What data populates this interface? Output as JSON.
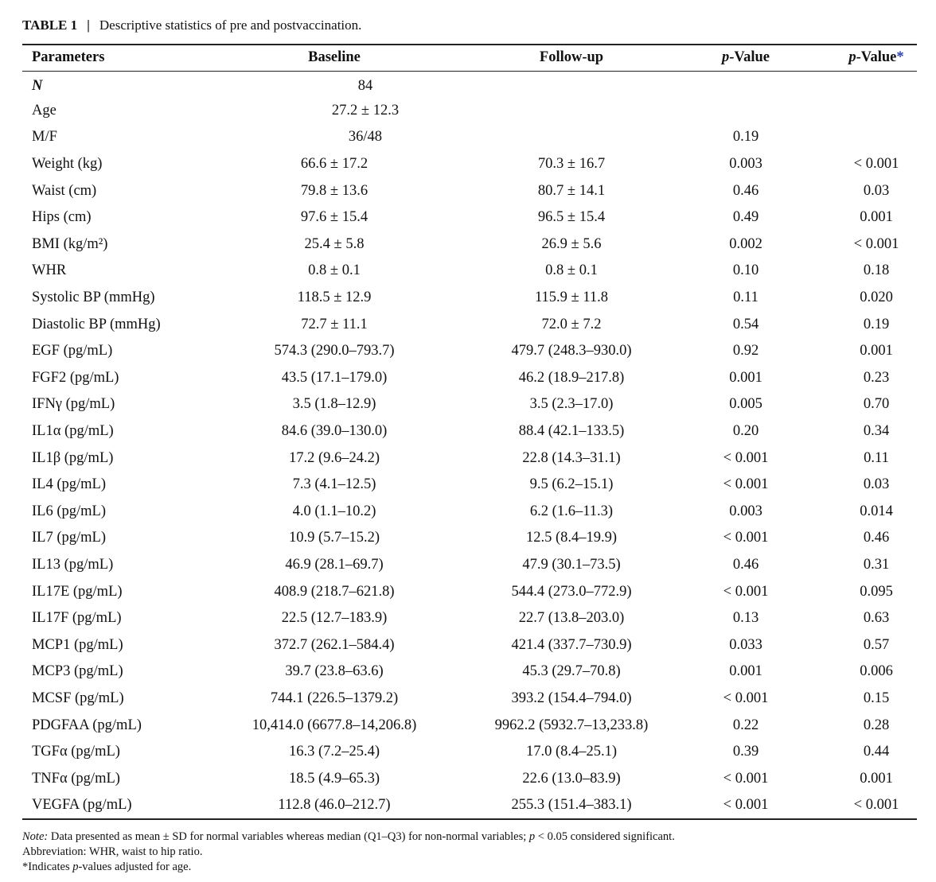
{
  "caption": {
    "label": "TABLE 1",
    "separator": "|",
    "text": "Descriptive statistics of pre and postvaccination."
  },
  "headers": {
    "parameters": "Parameters",
    "baseline": "Baseline",
    "followup": "Follow-up",
    "p_italic": "p",
    "p_rest": "-Value",
    "padj_italic": "p",
    "padj_rest": "-Value",
    "padj_star": "*"
  },
  "combined_rows": [
    {
      "param": "N",
      "value": "84",
      "p": "",
      "padj": ""
    },
    {
      "param": "Age",
      "value": "27.2 ± 12.3",
      "p": "",
      "padj": ""
    },
    {
      "param": "M/F",
      "value": "36/48",
      "p": "0.19",
      "padj": ""
    }
  ],
  "rows": [
    {
      "param": "Weight (kg)",
      "baseline": "66.6 ± 17.2",
      "followup": "70.3 ± 16.7",
      "p": "0.003",
      "padj": "< 0.001"
    },
    {
      "param": "Waist (cm)",
      "baseline": "79.8 ± 13.6",
      "followup": "80.7 ± 14.1",
      "p": "0.46",
      "padj": "0.03"
    },
    {
      "param": "Hips (cm)",
      "baseline": "97.6 ± 15.4",
      "followup": "96.5 ± 15.4",
      "p": "0.49",
      "padj": "0.001"
    },
    {
      "param": "BMI (kg/m²)",
      "baseline": "25.4 ± 5.8",
      "followup": "26.9 ± 5.6",
      "p": "0.002",
      "padj": "< 0.001"
    },
    {
      "param": "WHR",
      "baseline": "0.8 ± 0.1",
      "followup": "0.8 ± 0.1",
      "p": "0.10",
      "padj": "0.18"
    },
    {
      "param": "Systolic BP (mmHg)",
      "baseline": "118.5 ± 12.9",
      "followup": "115.9 ± 11.8",
      "p": "0.11",
      "padj": "0.020"
    },
    {
      "param": "Diastolic BP (mmHg)",
      "baseline": "72.7 ± 11.1",
      "followup": "72.0 ± 7.2",
      "p": "0.54",
      "padj": "0.19"
    },
    {
      "param": "EGF (pg/mL)",
      "baseline": "574.3 (290.0–793.7)",
      "followup": "479.7 (248.3–930.0)",
      "p": "0.92",
      "padj": "0.001"
    },
    {
      "param": "FGF2 (pg/mL)",
      "baseline": "43.5 (17.1–179.0)",
      "followup": "46.2 (18.9–217.8)",
      "p": "0.001",
      "padj": "0.23"
    },
    {
      "param": "IFNγ (pg/mL)",
      "baseline": "3.5 (1.8–12.9)",
      "followup": "3.5 (2.3–17.0)",
      "p": "0.005",
      "padj": "0.70"
    },
    {
      "param": "IL1α (pg/mL)",
      "baseline": "84.6 (39.0–130.0)",
      "followup": "88.4 (42.1–133.5)",
      "p": "0.20",
      "padj": "0.34"
    },
    {
      "param": "IL1β (pg/mL)",
      "baseline": "17.2 (9.6–24.2)",
      "followup": "22.8 (14.3–31.1)",
      "p": "< 0.001",
      "padj": "0.11"
    },
    {
      "param": "IL4 (pg/mL)",
      "baseline": "7.3 (4.1–12.5)",
      "followup": "9.5 (6.2–15.1)",
      "p": "< 0.001",
      "padj": "0.03"
    },
    {
      "param": "IL6 (pg/mL)",
      "baseline": "4.0 (1.1–10.2)",
      "followup": "6.2 (1.6–11.3)",
      "p": "0.003",
      "padj": "0.014"
    },
    {
      "param": "IL7 (pg/mL)",
      "baseline": "10.9 (5.7–15.2)",
      "followup": "12.5 (8.4–19.9)",
      "p": "< 0.001",
      "padj": "0.46"
    },
    {
      "param": "IL13 (pg/mL)",
      "baseline": "46.9 (28.1–69.7)",
      "followup": "47.9 (30.1–73.5)",
      "p": "0.46",
      "padj": "0.31"
    },
    {
      "param": "IL17E (pg/mL)",
      "baseline": "408.9 (218.7–621.8)",
      "followup": "544.4 (273.0–772.9)",
      "p": "< 0.001",
      "padj": "0.095"
    },
    {
      "param": "IL17F (pg/mL)",
      "baseline": "22.5 (12.7–183.9)",
      "followup": "22.7 (13.8–203.0)",
      "p": "0.13",
      "padj": "0.63"
    },
    {
      "param": "MCP1 (pg/mL)",
      "baseline": "372.7 (262.1–584.4)",
      "followup": "421.4 (337.7–730.9)",
      "p": "0.033",
      "padj": "0.57"
    },
    {
      "param": "MCP3 (pg/mL)",
      "baseline": "39.7 (23.8–63.6)",
      "followup": "45.3 (29.7–70.8)",
      "p": "0.001",
      "padj": "0.006"
    },
    {
      "param": "MCSF (pg/mL)",
      "baseline": "744.1 (226.5–1379.2)",
      "followup": "393.2 (154.4–794.0)",
      "p": "< 0.001",
      "padj": "0.15"
    },
    {
      "param": "PDGFAA (pg/mL)",
      "baseline": "10,414.0 (6677.8–14,206.8)",
      "followup": "9962.2 (5932.7–13,233.8)",
      "p": "0.22",
      "padj": "0.28"
    },
    {
      "param": "TGFα (pg/mL)",
      "baseline": "16.3 (7.2–25.4)",
      "followup": "17.0 (8.4–25.1)",
      "p": "0.39",
      "padj": "0.44"
    },
    {
      "param": "TNFα (pg/mL)",
      "baseline": "18.5 (4.9–65.3)",
      "followup": "22.6 (13.0–83.9)",
      "p": "< 0.001",
      "padj": "0.001"
    },
    {
      "param": "VEGFA (pg/mL)",
      "baseline": "112.8 (46.0–212.7)",
      "followup": "255.3 (151.4–383.1)",
      "p": "< 0.001",
      "padj": "< 0.001"
    }
  ],
  "notes": {
    "note_label": "Note:",
    "note_text_1": " Data presented as mean ± SD for normal variables whereas median (Q1–Q3) for non-normal variables; ",
    "note_p": "p",
    "note_text_2": " < 0.05 considered significant.",
    "abbreviation": "Abbreviation: WHR, waist to hip ratio.",
    "star_mark": "*",
    "star_text_1": "Indicates ",
    "star_p": "p",
    "star_text_2": "-values adjusted for age."
  }
}
